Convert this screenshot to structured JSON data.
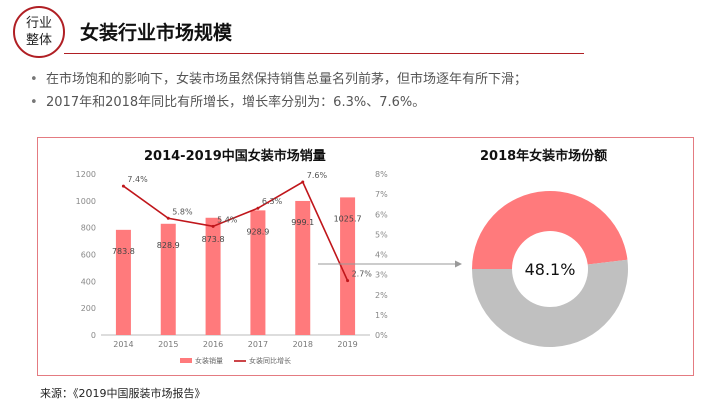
{
  "badge": {
    "line1": "行业",
    "line2": "整体"
  },
  "title": "女装行业市场规模",
  "bullets": [
    "在市场饱和的影响下，女装市场虽然保持销售总量名列前茅，但市场逐年有所下滑；",
    "2017年和2018年同比有所增长，增长率分别为：6.3%、7.6%。"
  ],
  "bullet_symbol": "•",
  "source": "来源：《2019中国服装市场报告》",
  "colors": {
    "bar": "#ff7a7c",
    "line": "#c0161b",
    "donut_rest": "#c0c0c0",
    "accent": "#b01f24"
  },
  "chart_data": [
    {
      "type": "bar+line",
      "title": "2014-2019中国女装市场销量",
      "categories": [
        "2014",
        "2015",
        "2016",
        "2017",
        "2018",
        "2019"
      ],
      "series": [
        {
          "name": "女装销量",
          "type": "bar",
          "axis": "left",
          "values": [
            783.8,
            828.9,
            873.8,
            928.9,
            999.1,
            1025.7
          ],
          "labels": [
            "783.8",
            "828.9",
            "873.8",
            "928.9",
            "999.1",
            "1025.7"
          ]
        },
        {
          "name": "女装同比增长",
          "type": "line",
          "axis": "right",
          "values": [
            7.4,
            5.8,
            5.4,
            6.3,
            7.6,
            2.7
          ],
          "labels": [
            "7.4%",
            "5.8%",
            "5.4%",
            "6.3%",
            "7.6%",
            "2.7%"
          ]
        }
      ],
      "yleft": {
        "min": 0,
        "max": 1200,
        "ticks": [
          "0",
          "200",
          "400",
          "600",
          "800",
          "1000",
          "1200"
        ]
      },
      "yright": {
        "min": 0,
        "max": 8,
        "ticks": [
          "0%",
          "1%",
          "2%",
          "3%",
          "4%",
          "5%",
          "6%",
          "7%",
          "8%"
        ]
      },
      "legend": "bottom"
    },
    {
      "type": "pie",
      "style": "donut",
      "title": "2018年女装市场份额",
      "values": [
        48.1,
        51.9
      ],
      "center_label": "48.1%"
    }
  ]
}
